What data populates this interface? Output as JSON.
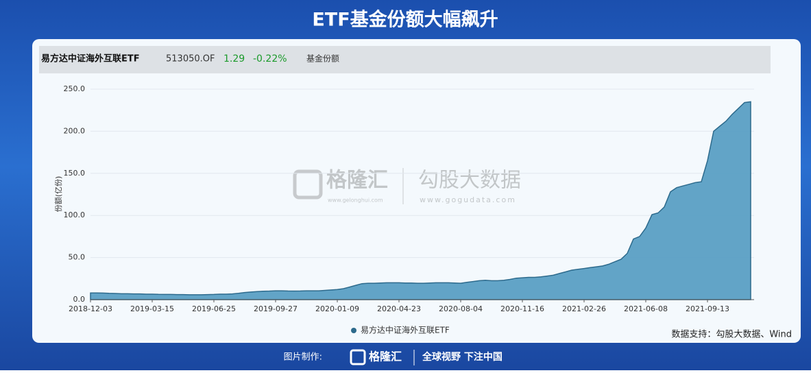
{
  "title": "ETF基金份额大幅飙升",
  "header": {
    "name": "易方达中证海外互联ETF",
    "code": "513050.OF",
    "price": 1.29,
    "change": "-0.22%",
    "metric": "基金份额"
  },
  "watermark": {
    "brand1": "格隆汇",
    "site1": "www.gelonghui.com",
    "brand2": "勾股大数据",
    "site2": "www.gogudata.com"
  },
  "source": "数据支持：勾股大数据、Wind",
  "footer": {
    "made_by": "图片制作:",
    "brand": "格隆汇",
    "slogan": "全球视野 下注中国"
  },
  "chart_data": {
    "type": "area",
    "y_label": "份额(亿份)",
    "categories": [
      "2018-12-03",
      null,
      null,
      null,
      null,
      null,
      null,
      null,
      null,
      null,
      "2019-03-15",
      null,
      null,
      null,
      null,
      null,
      null,
      null,
      null,
      null,
      "2019-06-25",
      null,
      null,
      null,
      null,
      null,
      null,
      null,
      null,
      null,
      "2019-09-27",
      null,
      null,
      null,
      null,
      null,
      null,
      null,
      null,
      null,
      "2020-01-09",
      null,
      null,
      null,
      null,
      null,
      null,
      null,
      null,
      null,
      "2020-04-23",
      null,
      null,
      null,
      null,
      null,
      null,
      null,
      null,
      null,
      "2020-08-04",
      null,
      null,
      null,
      null,
      null,
      null,
      null,
      null,
      null,
      "2020-11-16",
      null,
      null,
      null,
      null,
      null,
      null,
      null,
      null,
      null,
      "2021-02-26",
      null,
      null,
      null,
      null,
      null,
      null,
      null,
      null,
      null,
      "2021-06-08",
      null,
      null,
      null,
      null,
      null,
      null,
      null,
      null,
      null,
      "2021-09-13",
      null,
      null,
      null,
      null,
      null,
      null,
      null
    ],
    "series": [
      {
        "name": "易方达中证海外互联ETF",
        "color": "#5a9fc4",
        "values": [
          8,
          8,
          7.8,
          7.5,
          7.3,
          7,
          7,
          6.8,
          6.8,
          6.5,
          6.5,
          6.3,
          6.2,
          6.2,
          6,
          6,
          5.8,
          5.8,
          5.8,
          6,
          6.2,
          6.5,
          6.5,
          6.8,
          7.5,
          8.5,
          9,
          9.5,
          10,
          10.2,
          10.5,
          10.5,
          10.3,
          10.2,
          10.3,
          10.5,
          10.5,
          10.5,
          11,
          11.5,
          12,
          13,
          15,
          17,
          19,
          19.5,
          19.5,
          19.8,
          20,
          20,
          20,
          19.8,
          19.8,
          19.5,
          19.5,
          19.8,
          20,
          20,
          20,
          19.8,
          19.5,
          20.5,
          21.5,
          22.5,
          23,
          22.5,
          22.5,
          23,
          24,
          25.5,
          26,
          26.5,
          26.5,
          27,
          28,
          29,
          31,
          33,
          35,
          36,
          37,
          38,
          39,
          40,
          42,
          45,
          48,
          55,
          72,
          75,
          85,
          101,
          103,
          110,
          128,
          133,
          135,
          137,
          139,
          140,
          165,
          200,
          206,
          212,
          220,
          227,
          234,
          235
        ]
      }
    ],
    "ylim": [
      0,
      250
    ],
    "yticks": [
      {
        "value": 0,
        "label": "0.0"
      },
      {
        "value": 50,
        "label": "50.0"
      },
      {
        "value": 100,
        "label": "100.0"
      },
      {
        "value": 150,
        "label": "150.0"
      },
      {
        "value": 200,
        "label": "200.0"
      },
      {
        "value": 250,
        "label": "250.0"
      }
    ],
    "grid": true
  }
}
